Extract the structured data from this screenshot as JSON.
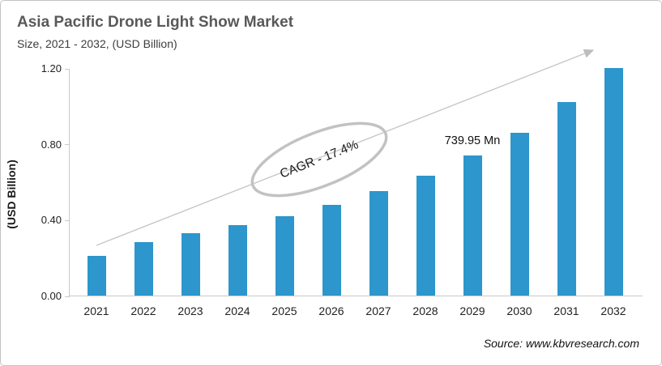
{
  "chart_data": {
    "type": "bar",
    "title": "Asia Pacific Drone Light Show Market",
    "subtitle": "Size, 2021 - 2032, (USD Billion)",
    "categories": [
      "2021",
      "2022",
      "2023",
      "2024",
      "2025",
      "2026",
      "2027",
      "2028",
      "2029",
      "2030",
      "2031",
      "2032"
    ],
    "values": [
      0.21,
      0.28,
      0.33,
      0.37,
      0.42,
      0.48,
      0.55,
      0.63,
      0.74,
      0.86,
      1.02,
      1.2
    ],
    "unit": "USD Billion",
    "ylabel": "(USD Billion)",
    "ylim": [
      0,
      1.2
    ],
    "y_ticks": {
      "values": [
        0,
        0.4,
        0.8,
        1.2
      ],
      "labels": [
        "0.00",
        "0.40",
        "0.80",
        "1.20"
      ]
    },
    "grid": false,
    "legend": false,
    "bar_color": "#2D96CC",
    "cagr_annotation": "CAGR - 17.4%",
    "point_annotation": {
      "text": "739.95 Mn",
      "category": "2029"
    }
  },
  "footer": {
    "source": "Source: www.kbvresearch.com"
  }
}
